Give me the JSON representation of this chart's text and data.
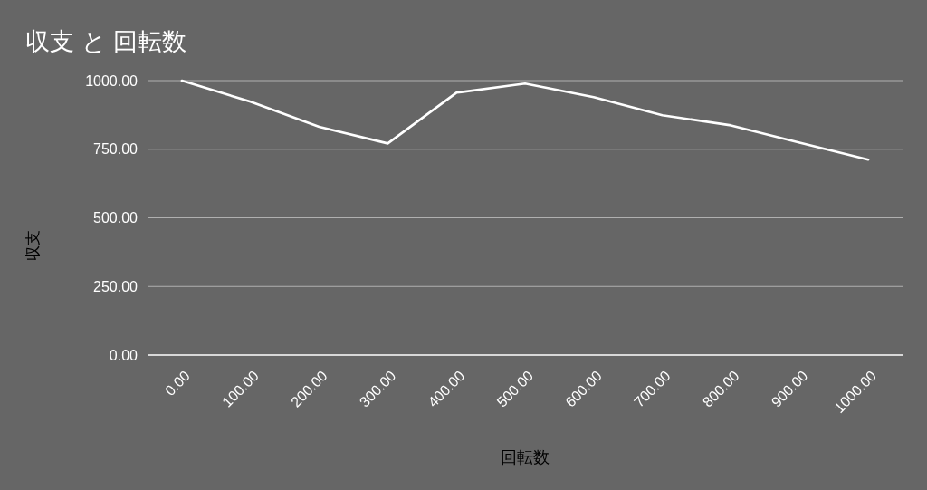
{
  "chart_data": {
    "type": "line",
    "title": "収支 と 回転数",
    "xlabel": "回転数",
    "ylabel": "収支",
    "x": [
      0,
      100,
      200,
      300,
      400,
      500,
      600,
      700,
      800,
      900,
      1000
    ],
    "series": [
      {
        "color": "#ffffff",
        "values": [
          1000,
          923,
          832,
          771,
          956,
          989,
          940,
          874,
          837,
          774,
          712
        ]
      }
    ],
    "xlim": [
      -50,
      1050
    ],
    "xticks": [
      {
        "value": 0,
        "label": "0.00"
      },
      {
        "value": 100,
        "label": "100.00"
      },
      {
        "value": 200,
        "label": "200.00"
      },
      {
        "value": 300,
        "label": "300.00"
      },
      {
        "value": 400,
        "label": "400.00"
      },
      {
        "value": 500,
        "label": "500.00"
      },
      {
        "value": 600,
        "label": "600.00"
      },
      {
        "value": 700,
        "label": "700.00"
      },
      {
        "value": 800,
        "label": "800.00"
      },
      {
        "value": 900,
        "label": "900.00"
      },
      {
        "value": 1000,
        "label": "1000.00"
      }
    ],
    "ylim": [
      0,
      1000
    ],
    "yticks": [
      {
        "value": 0,
        "label": "0.00"
      },
      {
        "value": 250,
        "label": "250.00"
      },
      {
        "value": 500,
        "label": "500.00"
      },
      {
        "value": 750,
        "label": "750.00"
      },
      {
        "value": 1000,
        "label": "1000.00"
      }
    ],
    "grid": "y",
    "line_style": "solid"
  }
}
